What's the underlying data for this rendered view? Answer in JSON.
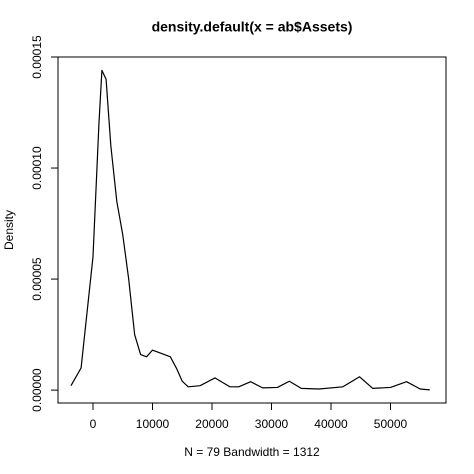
{
  "chart_data": {
    "type": "line",
    "title": "density.default(x = ab$Assets)",
    "x_label": "N = 79   Bandwidth = 1312",
    "y_label": "Density",
    "x": [
      -3700,
      -2000,
      0,
      1000,
      1500,
      2200,
      3000,
      4000,
      5000,
      6000,
      7000,
      8000,
      9000,
      10000,
      11000,
      12000,
      13000,
      14000,
      15000,
      16000,
      18000,
      20500,
      23000,
      24500,
      26500,
      28500,
      31000,
      33000,
      35000,
      38000,
      42000,
      44800,
      47000,
      50000,
      52700,
      55000,
      56600
    ],
    "series": [
      {
        "name": "density",
        "color": "#000000",
        "values": [
          2e-06,
          1e-05,
          6e-05,
          0.00012,
          0.000144,
          0.00014,
          0.00011,
          8.5e-05,
          7e-05,
          5e-05,
          2.5e-05,
          1.6e-05,
          1.5e-05,
          1.8e-05,
          1.7e-05,
          1.6e-05,
          1.5e-05,
          1e-05,
          4e-06,
          1.5e-06,
          2e-06,
          5.5e-06,
          1.5e-06,
          1.5e-06,
          3.8e-06,
          1e-06,
          1.2e-06,
          4e-06,
          8e-07,
          5e-07,
          1.5e-06,
          6e-06,
          8e-07,
          1.2e-06,
          3.8e-06,
          5e-07,
          1e-07
        ]
      }
    ],
    "xlim": [
      -5880,
      59330
    ],
    "ylim": [
      -5.8e-06,
      0.00015
    ],
    "xticks": [
      0,
      10000,
      20000,
      30000,
      40000,
      50000
    ],
    "yticks": [
      {
        "value": 0,
        "label": "0.00000"
      },
      {
        "value": 5e-05,
        "label": "0.00005"
      },
      {
        "value": 0.0001,
        "label": "0.00010"
      },
      {
        "value": 0.00015,
        "label": "0.00015"
      }
    ]
  }
}
